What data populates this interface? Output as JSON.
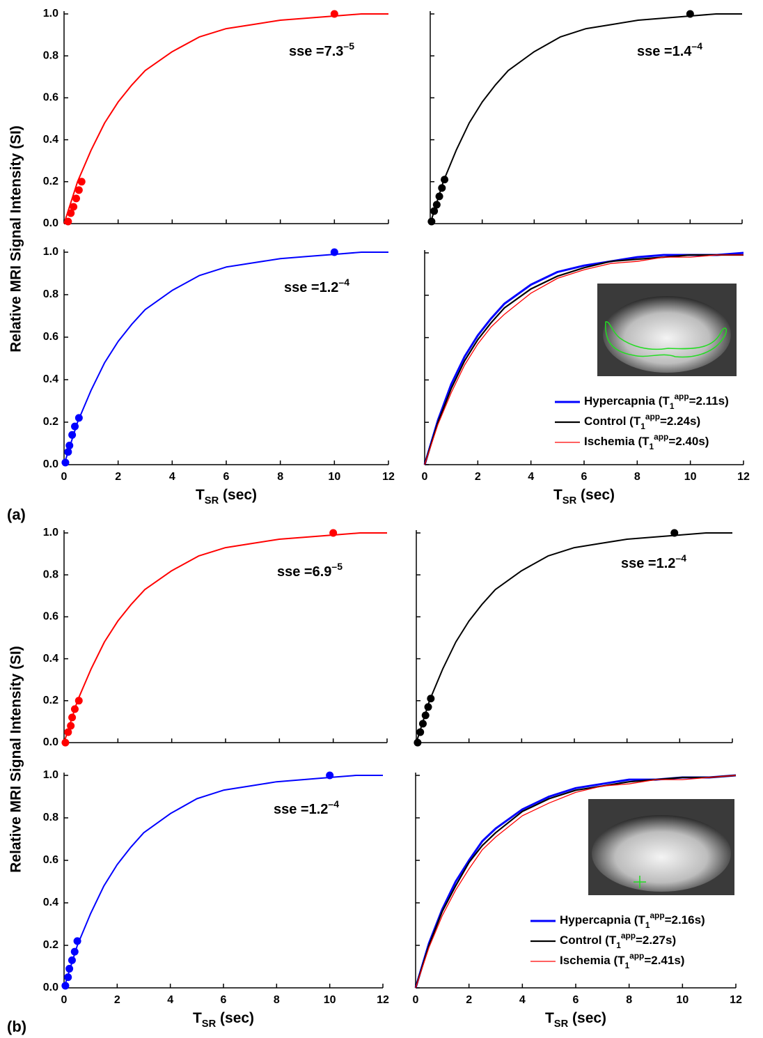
{
  "ylabel": "Relative MRI Signal Intensity (SI)",
  "figure_labels": [
    "(a)",
    "(b)"
  ],
  "chart_data": [
    {
      "type": "line",
      "xlim": [
        0,
        12
      ],
      "xticks": [
        0,
        2,
        4,
        6,
        8,
        10,
        12
      ],
      "xtick_labels": false,
      "ylim": [
        0,
        1
      ],
      "yticks": [
        {
          "value": 0,
          "label": "0.0"
        },
        0.2,
        0.4,
        0.6,
        0.8,
        {
          "value": 1,
          "label": "1.0"
        }
      ],
      "x": [
        0,
        0.5,
        1,
        1.5,
        2,
        2.5,
        3,
        4,
        5,
        6,
        7,
        8,
        9,
        10,
        11,
        12
      ],
      "series": [
        {
          "color": "#ff0000",
          "values": [
            0,
            0.2,
            0.35,
            0.48,
            0.58,
            0.66,
            0.73,
            0.82,
            0.89,
            0.93,
            0.95,
            0.97,
            0.98,
            0.99,
            1.0,
            1.0
          ]
        }
      ],
      "points": {
        "color": "#ff0000",
        "x": [
          0.15,
          0.25,
          0.35,
          0.45,
          0.55,
          0.65,
          10
        ],
        "values": [
          0.01,
          0.05,
          0.08,
          0.12,
          0.16,
          0.2,
          1.0
        ]
      },
      "annotation": {
        "text": "sse =7.3",
        "sup": "–5"
      }
    },
    {
      "type": "line",
      "xlim": [
        0,
        12
      ],
      "xticks": [
        0,
        2,
        4,
        6,
        8,
        10,
        12
      ],
      "xtick_labels": false,
      "ylim": [
        0,
        1
      ],
      "yticks": [
        0,
        0.2,
        0.4,
        0.6,
        0.8,
        1
      ],
      "ytick_labels": false,
      "x": [
        0,
        0.5,
        1,
        1.5,
        2,
        2.5,
        3,
        4,
        5,
        6,
        7,
        8,
        9,
        10,
        11,
        12
      ],
      "series": [
        {
          "color": "#000000",
          "values": [
            0,
            0.2,
            0.35,
            0.48,
            0.58,
            0.66,
            0.73,
            0.82,
            0.89,
            0.93,
            0.95,
            0.97,
            0.98,
            0.99,
            1.0,
            1.0
          ]
        }
      ],
      "points": {
        "color": "#000000",
        "x": [
          0.05,
          0.15,
          0.25,
          0.35,
          0.45,
          0.55,
          10
        ],
        "values": [
          0.01,
          0.06,
          0.09,
          0.13,
          0.17,
          0.21,
          1.0
        ]
      },
      "annotation": {
        "text": "sse =1.4",
        "sup": "–4"
      }
    },
    {
      "type": "line",
      "xlim": [
        0,
        12
      ],
      "xticks": [
        0,
        2,
        4,
        6,
        8,
        10,
        12
      ],
      "xlabel": "TSR (sec)",
      "ylim": [
        0,
        1
      ],
      "yticks": [
        {
          "value": 0,
          "label": "0.0"
        },
        0.2,
        0.4,
        0.6,
        0.8,
        {
          "value": 1,
          "label": "1.0"
        }
      ],
      "x": [
        0,
        0.5,
        1,
        1.5,
        2,
        2.5,
        3,
        4,
        5,
        6,
        7,
        8,
        9,
        10,
        11,
        12
      ],
      "series": [
        {
          "color": "#0000ff",
          "values": [
            0,
            0.2,
            0.35,
            0.48,
            0.58,
            0.66,
            0.73,
            0.82,
            0.89,
            0.93,
            0.95,
            0.97,
            0.98,
            0.99,
            1.0,
            1.0
          ]
        }
      ],
      "points": {
        "color": "#0000ff",
        "x": [
          0.05,
          0.15,
          0.2,
          0.3,
          0.4,
          0.55,
          10
        ],
        "values": [
          0.01,
          0.06,
          0.09,
          0.14,
          0.18,
          0.22,
          1.0
        ]
      },
      "annotation": {
        "text": "sse =1.2",
        "sup": "–4"
      }
    },
    {
      "type": "line",
      "xlim": [
        0,
        12
      ],
      "xticks": [
        0,
        2,
        4,
        6,
        8,
        10,
        12
      ],
      "xlabel": "TSR (sec)",
      "ylim": [
        0,
        1
      ],
      "yticks": [
        0,
        0.2,
        0.4,
        0.6,
        0.8,
        1
      ],
      "ytick_labels": false,
      "legend": "lower right",
      "x": [
        0,
        0.5,
        1,
        1.5,
        2,
        2.5,
        3,
        4,
        5,
        6,
        7,
        8,
        9,
        10,
        11,
        12
      ],
      "series": [
        {
          "name": "Hypercapnia (T1app=2.11s)",
          "color": "#0000ff",
          "values": [
            0,
            0.21,
            0.38,
            0.51,
            0.61,
            0.69,
            0.76,
            0.85,
            0.91,
            0.94,
            0.96,
            0.98,
            0.99,
            0.99,
            0.99,
            1.0
          ]
        },
        {
          "name": "Control (T1app=2.24s)",
          "color": "#000000",
          "values": [
            0,
            0.2,
            0.36,
            0.49,
            0.59,
            0.67,
            0.74,
            0.83,
            0.89,
            0.93,
            0.96,
            0.97,
            0.98,
            0.99,
            0.99,
            0.99
          ]
        },
        {
          "name": "Ischemia (T1app=2.40s)",
          "color": "#ff0000",
          "values": [
            0,
            0.19,
            0.34,
            0.47,
            0.57,
            0.65,
            0.71,
            0.81,
            0.88,
            0.92,
            0.95,
            0.96,
            0.98,
            0.98,
            0.99,
            0.99
          ]
        }
      ]
    },
    {
      "type": "line",
      "xlim": [
        0,
        12
      ],
      "xticks": [
        0,
        2,
        4,
        6,
        8,
        10,
        12
      ],
      "xtick_labels": false,
      "ylim": [
        0,
        1
      ],
      "yticks": [
        {
          "value": 0,
          "label": "0.0"
        },
        0.2,
        0.4,
        0.6,
        0.8,
        {
          "value": 1,
          "label": "1.0"
        }
      ],
      "x": [
        0,
        0.5,
        1,
        1.5,
        2,
        2.5,
        3,
        4,
        5,
        6,
        7,
        8,
        9,
        10,
        11,
        12
      ],
      "series": [
        {
          "color": "#ff0000",
          "values": [
            0,
            0.2,
            0.35,
            0.48,
            0.58,
            0.66,
            0.73,
            0.82,
            0.89,
            0.93,
            0.95,
            0.97,
            0.98,
            0.99,
            1.0,
            1.0
          ]
        }
      ],
      "points": {
        "color": "#ff0000",
        "x": [
          0.05,
          0.15,
          0.25,
          0.3,
          0.4,
          0.55,
          10
        ],
        "values": [
          0.0,
          0.05,
          0.08,
          0.12,
          0.16,
          0.2,
          1.0
        ]
      },
      "annotation": {
        "text": "sse =6.9",
        "sup": "–5"
      }
    },
    {
      "type": "line",
      "xlim": [
        0,
        12
      ],
      "xticks": [
        0,
        2,
        4,
        6,
        8,
        10,
        12
      ],
      "xtick_labels": false,
      "ylim": [
        0,
        1
      ],
      "yticks": [
        0,
        0.2,
        0.4,
        0.6,
        0.8,
        1
      ],
      "ytick_labels": false,
      "x": [
        0,
        0.5,
        1,
        1.5,
        2,
        2.5,
        3,
        4,
        5,
        6,
        7,
        8,
        9,
        10,
        11,
        12
      ],
      "series": [
        {
          "color": "#000000",
          "values": [
            0,
            0.2,
            0.35,
            0.48,
            0.58,
            0.66,
            0.73,
            0.82,
            0.89,
            0.93,
            0.95,
            0.97,
            0.98,
            0.99,
            1.0,
            1.0
          ]
        }
      ],
      "points": {
        "color": "#000000",
        "x": [
          0.05,
          0.15,
          0.25,
          0.35,
          0.45,
          0.55,
          9.8
        ],
        "values": [
          0.0,
          0.05,
          0.09,
          0.13,
          0.17,
          0.21,
          1.0
        ]
      },
      "annotation": {
        "text": "sse =1.2",
        "sup": "–4"
      }
    },
    {
      "type": "line",
      "xlim": [
        0,
        12
      ],
      "xticks": [
        0,
        2,
        4,
        6,
        8,
        10,
        12
      ],
      "xlabel": "TSR (sec)",
      "ylim": [
        0,
        1
      ],
      "yticks": [
        {
          "value": 0,
          "label": "0.0"
        },
        0.2,
        0.4,
        0.6,
        0.8,
        {
          "value": 1,
          "label": "1.0"
        }
      ],
      "x": [
        0,
        0.5,
        1,
        1.5,
        2,
        2.5,
        3,
        4,
        5,
        6,
        7,
        8,
        9,
        10,
        11,
        12
      ],
      "series": [
        {
          "color": "#0000ff",
          "values": [
            0,
            0.2,
            0.35,
            0.48,
            0.58,
            0.66,
            0.73,
            0.82,
            0.89,
            0.93,
            0.95,
            0.97,
            0.98,
            0.99,
            1.0,
            1.0
          ]
        }
      ],
      "points": {
        "color": "#0000ff",
        "x": [
          0.05,
          0.15,
          0.2,
          0.3,
          0.4,
          0.5,
          10
        ],
        "values": [
          0.01,
          0.05,
          0.09,
          0.13,
          0.17,
          0.22,
          1.0
        ]
      },
      "annotation": {
        "text": "sse =1.2",
        "sup": "–4"
      }
    },
    {
      "type": "line",
      "xlim": [
        0,
        12
      ],
      "xticks": [
        0,
        2,
        4,
        6,
        8,
        10,
        12
      ],
      "xlabel": "TSR (sec)",
      "ylim": [
        0,
        1
      ],
      "yticks": [
        0,
        0.2,
        0.4,
        0.6,
        0.8,
        1
      ],
      "ytick_labels": false,
      "legend": "lower right",
      "x": [
        0,
        0.5,
        1,
        1.5,
        2,
        2.5,
        3,
        4,
        5,
        6,
        7,
        8,
        9,
        10,
        11,
        12
      ],
      "series": [
        {
          "name": "Hypercapnia (T1app=2.16s)",
          "color": "#0000ff",
          "values": [
            0,
            0.21,
            0.37,
            0.5,
            0.6,
            0.69,
            0.75,
            0.84,
            0.9,
            0.94,
            0.96,
            0.98,
            0.98,
            0.99,
            0.99,
            1.0
          ]
        },
        {
          "name": "Control (T1app=2.27s)",
          "color": "#000000",
          "values": [
            0,
            0.2,
            0.36,
            0.48,
            0.59,
            0.67,
            0.73,
            0.83,
            0.89,
            0.93,
            0.95,
            0.97,
            0.98,
            0.99,
            0.99,
            1.0
          ]
        },
        {
          "name": "Ischemia (T1app=2.41s)",
          "color": "#ff0000",
          "values": [
            0,
            0.19,
            0.34,
            0.46,
            0.56,
            0.65,
            0.71,
            0.81,
            0.87,
            0.92,
            0.95,
            0.96,
            0.98,
            0.98,
            0.99,
            1.0
          ]
        }
      ]
    }
  ]
}
